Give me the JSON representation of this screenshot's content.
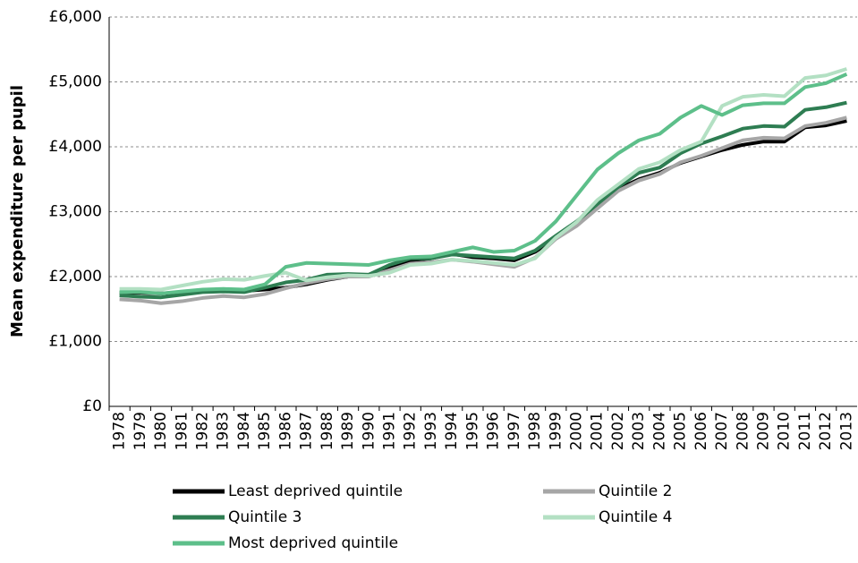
{
  "chart_data": {
    "type": "line",
    "y_label": "Mean expenditure per pupil",
    "categories": [
      "1978",
      "1979",
      "1980",
      "1981",
      "1982",
      "1983",
      "1984",
      "1985",
      "1986",
      "1987",
      "1988",
      "1989",
      "1990",
      "1991",
      "1992",
      "1993",
      "1994",
      "1995",
      "1996",
      "1997",
      "1998",
      "1999",
      "2000",
      "2001",
      "2002",
      "2003",
      "2004",
      "2005",
      "2006",
      "2007",
      "2008",
      "2009",
      "2010",
      "2011",
      "2012",
      "2013"
    ],
    "ylim": [
      0,
      6000
    ],
    "yticks": [
      {
        "value": 0,
        "label": "£0"
      },
      {
        "value": 1000,
        "label": "£1,000"
      },
      {
        "value": 2000,
        "label": "£2,000"
      },
      {
        "value": 3000,
        "label": "£3,000"
      },
      {
        "value": 4000,
        "label": "£4,000"
      },
      {
        "value": 5000,
        "label": "£5,000"
      },
      {
        "value": 6000,
        "label": "£6,000"
      }
    ],
    "grid": true,
    "legend": "bottom",
    "series": [
      {
        "name": "Least deprived quintile",
        "color": "#000000",
        "values": [
          1750,
          1750,
          1740,
          1760,
          1790,
          1800,
          1780,
          1800,
          1830,
          1880,
          1950,
          2000,
          2030,
          2150,
          2250,
          2280,
          2350,
          2300,
          2280,
          2250,
          2380,
          2600,
          2820,
          3100,
          3350,
          3500,
          3600,
          3750,
          3850,
          3950,
          4030,
          4080,
          4080,
          4300,
          4330,
          4400
        ]
      },
      {
        "name": "Quintile 2",
        "color": "#a6a6a6",
        "values": [
          1650,
          1630,
          1590,
          1620,
          1670,
          1700,
          1680,
          1730,
          1820,
          1900,
          1960,
          2000,
          2000,
          2100,
          2200,
          2220,
          2260,
          2230,
          2190,
          2150,
          2290,
          2580,
          2780,
          3050,
          3320,
          3480,
          3580,
          3760,
          3860,
          3980,
          4100,
          4140,
          4130,
          4320,
          4370,
          4450
        ]
      },
      {
        "name": "Quintile 3",
        "color": "#2e7d52",
        "values": [
          1710,
          1690,
          1680,
          1720,
          1760,
          1770,
          1760,
          1830,
          1910,
          1950,
          2030,
          2040,
          2030,
          2180,
          2280,
          2280,
          2340,
          2320,
          2300,
          2280,
          2400,
          2630,
          2850,
          3120,
          3380,
          3600,
          3680,
          3900,
          4050,
          4160,
          4280,
          4320,
          4310,
          4570,
          4610,
          4680
        ]
      },
      {
        "name": "Quintile 4",
        "color": "#b3e0c3",
        "values": [
          1810,
          1810,
          1800,
          1860,
          1920,
          1960,
          1950,
          2010,
          2060,
          1940,
          1990,
          2020,
          2010,
          2060,
          2180,
          2200,
          2260,
          2240,
          2210,
          2180,
          2280,
          2600,
          2840,
          3180,
          3420,
          3660,
          3760,
          3950,
          4080,
          4630,
          4770,
          4800,
          4780,
          5060,
          5100,
          5200
        ]
      },
      {
        "name": "Most deprived quintile",
        "color": "#5dbf8a",
        "values": [
          1760,
          1760,
          1740,
          1770,
          1800,
          1810,
          1800,
          1880,
          2150,
          2210,
          2200,
          2190,
          2180,
          2250,
          2300,
          2310,
          2380,
          2450,
          2380,
          2400,
          2550,
          2850,
          3250,
          3650,
          3900,
          4100,
          4200,
          4450,
          4630,
          4490,
          4640,
          4670,
          4670,
          4920,
          4980,
          5120
        ]
      }
    ]
  }
}
